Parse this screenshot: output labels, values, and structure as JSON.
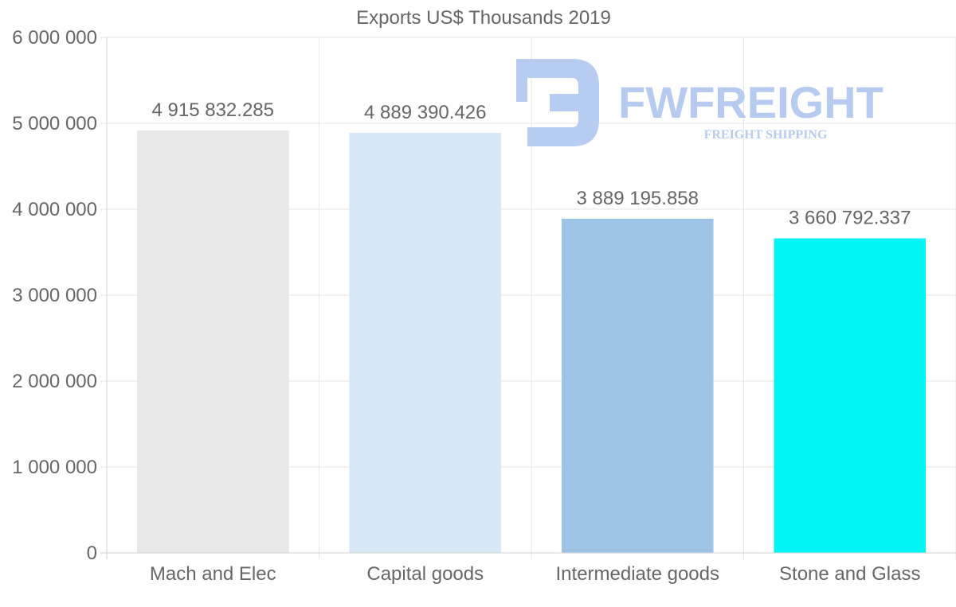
{
  "chart_data": {
    "type": "bar",
    "title": "Exports US$ Thousands 2019",
    "categories": [
      "Mach and Elec",
      "Capital goods",
      "Intermediate goods",
      "Stone and Glass"
    ],
    "values": [
      4915832.285,
      4889390.426,
      3889195.858,
      3660792.337
    ],
    "value_labels": [
      "4 915 832.285",
      "4 889 390.426",
      "3 889 195.858",
      "3 660 792.337"
    ],
    "bar_colors": [
      "#e8e8e8",
      "#d8e8f8",
      "#9dc3e6",
      "#00f5f5"
    ],
    "ylim": [
      0,
      6000000
    ],
    "yticks": [
      0,
      1000000,
      2000000,
      3000000,
      4000000,
      5000000,
      6000000
    ],
    "ytick_labels": [
      "0",
      "1 000 000",
      "2 000 000",
      "3 000 000",
      "4 000 000",
      "5 000 000",
      "6 000 000"
    ],
    "xlabel": "",
    "ylabel": "",
    "grid": true,
    "legend": "none"
  },
  "watermark": {
    "brand": "FWFREIGHT",
    "tagline": "FREIGHT SHIPPING",
    "color": "#b3c9f0"
  }
}
